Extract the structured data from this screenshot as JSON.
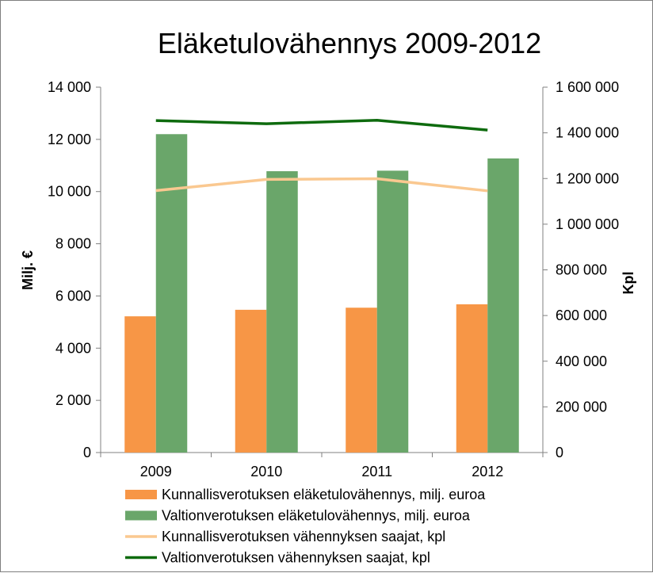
{
  "chart_data": {
    "type": "bar",
    "title": "Eläketulovähennys 2009-2012",
    "categories": [
      "2009",
      "2010",
      "2011",
      "2012"
    ],
    "ylabel": "Milj. €",
    "y2label": "Kpl",
    "ylim": [
      0,
      14000
    ],
    "y2lim": [
      0,
      1600000
    ],
    "yticks": [
      "0",
      "2 000",
      "4 000",
      "6 000",
      "8 000",
      "10 000",
      "12 000",
      "14 000"
    ],
    "y2ticks": [
      "0",
      "200 000",
      "400 000",
      "600 000",
      "800 000",
      "1 000 000",
      "1 200 000",
      "1 400 000",
      "1 600 000"
    ],
    "grid": false,
    "legend_position": "bottom",
    "series": [
      {
        "name": "Kunnallisverotuksen eläketulovähennys, milj. euroa",
        "kind": "bar",
        "axis": "left",
        "color": "#f79646",
        "values": [
          5220,
          5470,
          5550,
          5680
        ]
      },
      {
        "name": "Valtionverotuksen eläketulovähennys, milj. euroa",
        "kind": "bar",
        "axis": "left",
        "color": "#6aa66a",
        "values": [
          12200,
          10780,
          10800,
          11270
        ]
      },
      {
        "name": "Kunnallisverotuksen vähennyksen saajat, kpl",
        "kind": "line",
        "axis": "right",
        "color": "#fac890",
        "values": [
          1147000,
          1196000,
          1199000,
          1146000
        ]
      },
      {
        "name": "Valtionverotuksen vähennyksen saajat, kpl",
        "kind": "line",
        "axis": "right",
        "color": "#0e6b0e",
        "values": [
          1454000,
          1440000,
          1455000,
          1412000
        ]
      }
    ]
  }
}
